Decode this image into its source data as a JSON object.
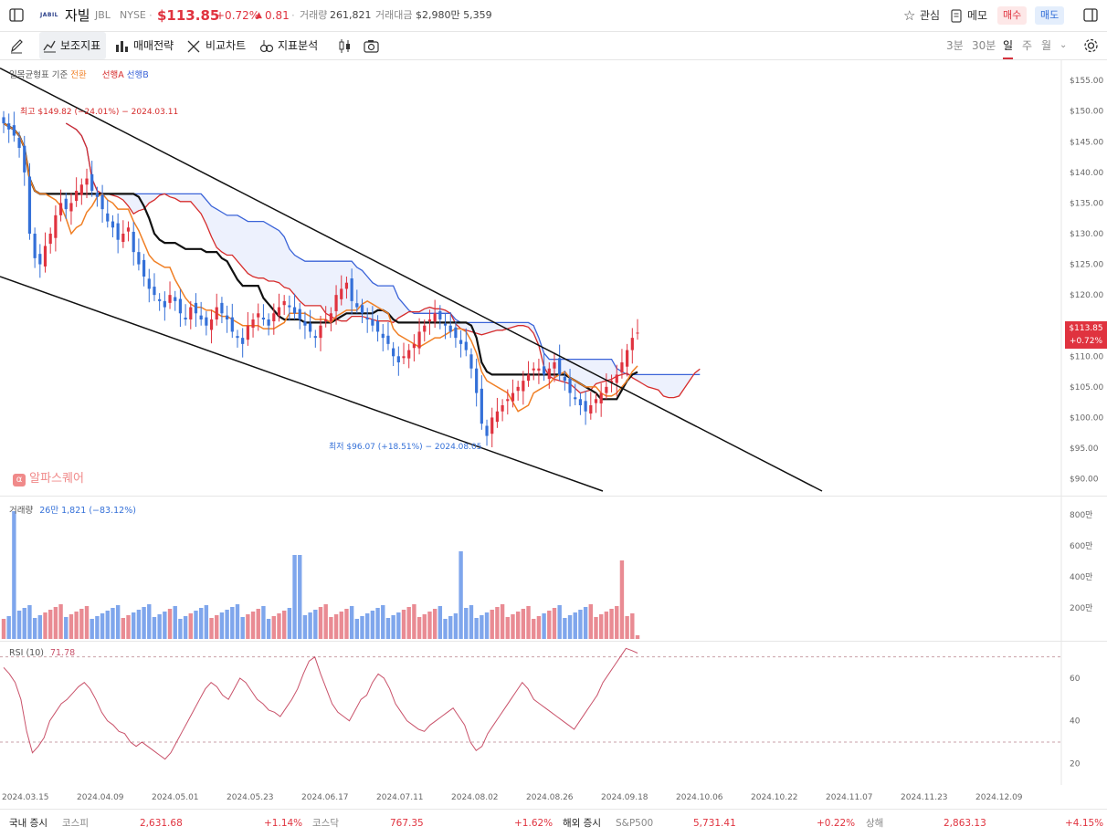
{
  "header": {
    "logo_text": "JABIL",
    "name": "자빌",
    "ticker": "JBL",
    "exchange": "NYSE",
    "price": "$113.85",
    "change_pct": "+0.72%",
    "change_abs": "0.81",
    "volume_label": "거래량",
    "volume": "261,821",
    "amount_label": "거래대금",
    "amount": "$2,980만 5,359",
    "watch_label": "관심",
    "memo_label": "메모",
    "buy_label": "매수",
    "sell_label": "매도"
  },
  "toolbar": {
    "indicators": "보조지표",
    "strategy": "매매전략",
    "compare": "비교차트",
    "analysis": "지표분석",
    "periods": [
      "3분",
      "30분",
      "일",
      "주",
      "월"
    ],
    "active_period": "일"
  },
  "legend": {
    "ichimoku": "일목균형표",
    "base": "기준",
    "conversion": "전환",
    "spanA": "선행A",
    "spanB": "선행B"
  },
  "annotations": {
    "high": "최고 $149.82 (−24.01%) − 2024.03.11",
    "low": "최저 $96.07 (+18.51%) − 2024.08.05",
    "watermark": "알파스퀘어"
  },
  "price_badge": {
    "price": "$113.85",
    "change": "+0.72%"
  },
  "volume_pane": {
    "label": "거래량",
    "value": "26만 1,821 (−83.12%)"
  },
  "rsi_pane": {
    "label": "RSI",
    "param": "(10)",
    "value": "71.78"
  },
  "footer": {
    "domestic_label": "국내 증시",
    "kospi_label": "코스피",
    "kospi": "2,631.68",
    "kospi_chg": "+1.14%",
    "kosdaq_label": "코스닥",
    "kosdaq": "767.35",
    "kosdaq_chg": "+1.62%",
    "overseas_label": "해외 증시",
    "sp_label": "S&P500",
    "sp": "5,731.41",
    "sp_chg": "+0.22%",
    "sh_label": "상해",
    "sh": "2,863.13",
    "sh_chg": "+4.15%"
  },
  "colors": {
    "up": "#e0333f",
    "down": "#3470d8",
    "conversion": "#f07f24",
    "base": "#111111",
    "spanA": "#d62c2c",
    "spanB": "#3a63d8"
  },
  "chart_data": [
    {
      "type": "candlestick",
      "title": "",
      "price_axis": {
        "ylim": [
          88,
          158
        ],
        "ticks": [
          "$155.00",
          "$150.00",
          "$145.00",
          "$140.00",
          "$135.00",
          "$130.00",
          "$125.00",
          "$120.00",
          "$115.00",
          "$110.00",
          "$105.00",
          "$100.00",
          "$95.00",
          "$90.00"
        ]
      },
      "date_ticks": [
        "2024.03.15",
        "2024.04.09",
        "2024.05.01",
        "2024.05.23",
        "2024.06.17",
        "2024.07.11",
        "2024.08.02",
        "2024.08.26",
        "2024.09.18",
        "2024.10.06",
        "2024.10.22",
        "2024.11.07",
        "2024.11.23",
        "2024.12.09"
      ],
      "close_series": [
        148,
        147,
        146,
        144,
        140,
        130,
        126,
        125,
        128,
        130,
        133,
        135,
        134,
        135,
        137,
        138,
        139,
        137,
        136,
        134,
        132,
        131,
        129,
        130,
        131,
        127,
        125,
        123,
        121,
        120,
        119,
        118,
        120,
        119,
        117,
        116,
        118,
        117,
        116,
        115,
        116,
        118,
        117,
        116,
        114,
        113,
        112,
        115,
        116,
        117,
        116,
        115,
        117,
        118,
        119,
        118,
        117,
        116,
        115,
        114,
        113,
        115,
        116,
        117,
        120,
        121,
        122,
        119,
        118,
        117,
        116,
        115,
        114,
        113,
        112,
        110,
        109,
        110,
        111,
        112,
        114,
        115,
        116,
        117,
        116,
        115,
        114,
        113,
        112,
        111,
        108,
        104,
        99,
        97,
        100,
        101,
        102,
        103,
        104,
        105,
        106,
        107,
        108,
        108,
        107,
        108,
        109,
        107,
        106,
        104,
        103,
        102,
        101,
        102,
        103,
        104,
        105,
        106,
        107,
        109,
        111,
        113,
        113.85
      ],
      "ichimoku_note": "Lines: 기준 (base), 전환 (conversion), 선행A / 선행B cloud"
    },
    {
      "type": "bar",
      "title": "거래량",
      "y_ticks": [
        "800만",
        "600만",
        "400만",
        "200만"
      ]
    },
    {
      "type": "line",
      "title": "RSI (10)",
      "y_ticks": [
        "60",
        "40",
        "20"
      ],
      "values": [
        65,
        62,
        58,
        50,
        35,
        25,
        28,
        32,
        40,
        44,
        48,
        50,
        53,
        56,
        58,
        55,
        50,
        44,
        40,
        38,
        35,
        34,
        30,
        28,
        30,
        28,
        26,
        24,
        22,
        25,
        30,
        35,
        40,
        45,
        50,
        55,
        58,
        56,
        52,
        50,
        55,
        60,
        58,
        54,
        50,
        48,
        45,
        44,
        42,
        46,
        50,
        55,
        62,
        68,
        70,
        62,
        55,
        48,
        44,
        42,
        40,
        45,
        50,
        52,
        58,
        62,
        60,
        55,
        48,
        44,
        40,
        38,
        36,
        35,
        38,
        40,
        42,
        44,
        46,
        42,
        38,
        30,
        26,
        28,
        34,
        38,
        42,
        46,
        50,
        54,
        58,
        55,
        50,
        48,
        46,
        44,
        42,
        40,
        38,
        36,
        40,
        44,
        48,
        52,
        58,
        62,
        66,
        70,
        74,
        73,
        71.78
      ]
    }
  ]
}
